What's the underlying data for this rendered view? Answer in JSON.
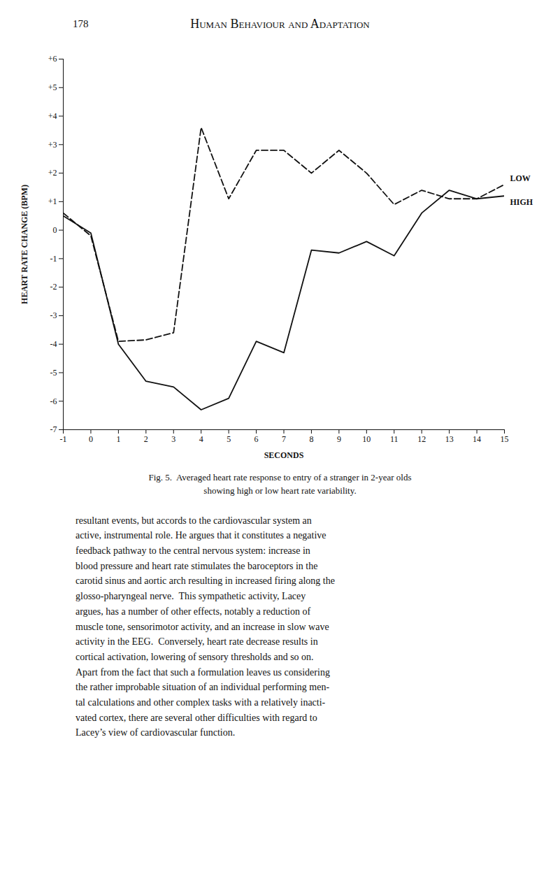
{
  "chart_data": {
    "type": "line",
    "title": "Human Behaviour and Adaptation",
    "xlabel": "SECONDS",
    "ylabel": "HEART RATE CHANGE (BPM)",
    "x": [
      -1,
      0,
      1,
      2,
      3,
      4,
      5,
      6,
      7,
      8,
      9,
      10,
      11,
      12,
      13,
      14,
      15
    ],
    "series": [
      {
        "name": "LOW",
        "color": "#111111",
        "line_style": "dashed",
        "values": [
          0.6,
          -0.2,
          -3.9,
          -3.85,
          -3.6,
          3.6,
          1.1,
          2.8,
          2.8,
          2.0,
          2.8,
          2.0,
          0.9,
          1.4,
          1.1,
          1.1,
          1.6
        ]
      },
      {
        "name": "HIGH",
        "color": "#111111",
        "line_style": "solid",
        "values": [
          0.5,
          -0.1,
          -4.0,
          -5.3,
          -5.5,
          -6.3,
          -5.9,
          -3.9,
          -4.3,
          -0.7,
          -0.8,
          -0.4,
          -0.9,
          0.6,
          1.4,
          1.1,
          1.2
        ]
      }
    ],
    "xlim": [
      -1,
      15
    ],
    "ylim": [
      -7,
      6
    ],
    "xticks": [
      -1,
      0,
      1,
      2,
      3,
      4,
      5,
      6,
      7,
      8,
      9,
      10,
      11,
      12,
      13,
      14,
      15
    ],
    "yticks": [
      -7,
      -6,
      -5,
      -4,
      -3,
      -2,
      -1,
      0,
      {
        "value": 1,
        "label": "+1"
      },
      {
        "value": 2,
        "label": "+2"
      },
      {
        "value": 3,
        "label": "+3"
      },
      {
        "value": 4,
        "label": "+4"
      },
      {
        "value": 5,
        "label": "+5"
      },
      {
        "value": 6,
        "label": "+6"
      }
    ],
    "grid": false,
    "annotations": [
      "178",
      "Fig. 5.  Averaged heart rate response to entry of a stranger in 2-year olds",
      "showing high or low heart rate variability.",
      "resultant events, but accords to the cardiovascular system an\nactive, instrumental role. He argues that it constitutes a negative\nfeedback pathway to the central nervous system: increase in\nblood pressure and heart rate stimulates the baroceptors in the\ncarotid sinus and aortic arch resulting in increased firing along the\nglosso-pharyngeal nerve.  This sympathetic activity, Lacey\nargues, has a number of other effects, notably a reduction of\nmuscle tone, sensorimotor activity, and an increase in slow wave\nactivity in the EEG.  Conversely, heart rate decrease results in\ncortical activation, lowering of sensory thresholds and so on.\nApart from the fact that such a formulation leaves us considering\nthe rather improbable situation of an individual performing men-\ntal calculations and other complex tasks with a relatively inacti-\nvated cortex, there are several other difficulties with regard to\nLacey’s view of cardiovascular function."
    ]
  }
}
